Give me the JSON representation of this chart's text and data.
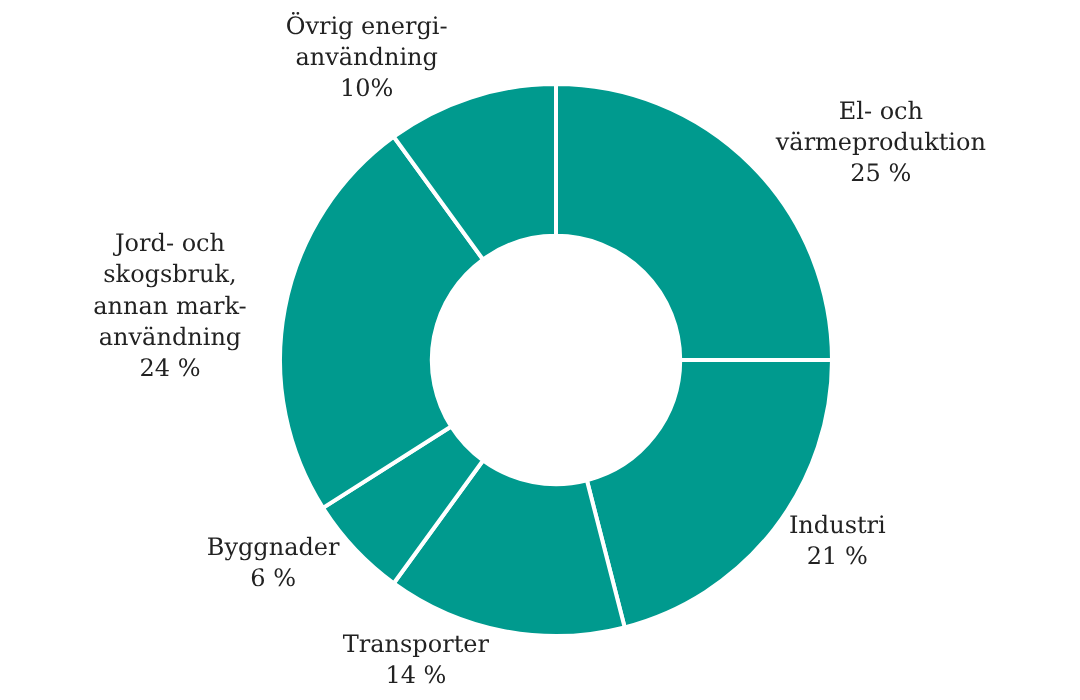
{
  "chart_data": {
    "type": "donut",
    "categories": [
      "El- och\nvärmeproduktion",
      "Industri",
      "Transporter",
      "Byggnader",
      "Jord- och\nskogsbruk,\nannan mark-\nanvändning",
      "Övrig energi-\nanvändning"
    ],
    "values": [
      25,
      21,
      14,
      6,
      24,
      10
    ],
    "value_labels": [
      "25 %",
      "21 %",
      "14 %",
      "6 %",
      "24 %",
      "10%"
    ],
    "colors": [
      "#009a8e",
      "#009a8e",
      "#009a8e",
      "#009a8e",
      "#009a8e",
      "#009a8e"
    ],
    "legend": false
  }
}
